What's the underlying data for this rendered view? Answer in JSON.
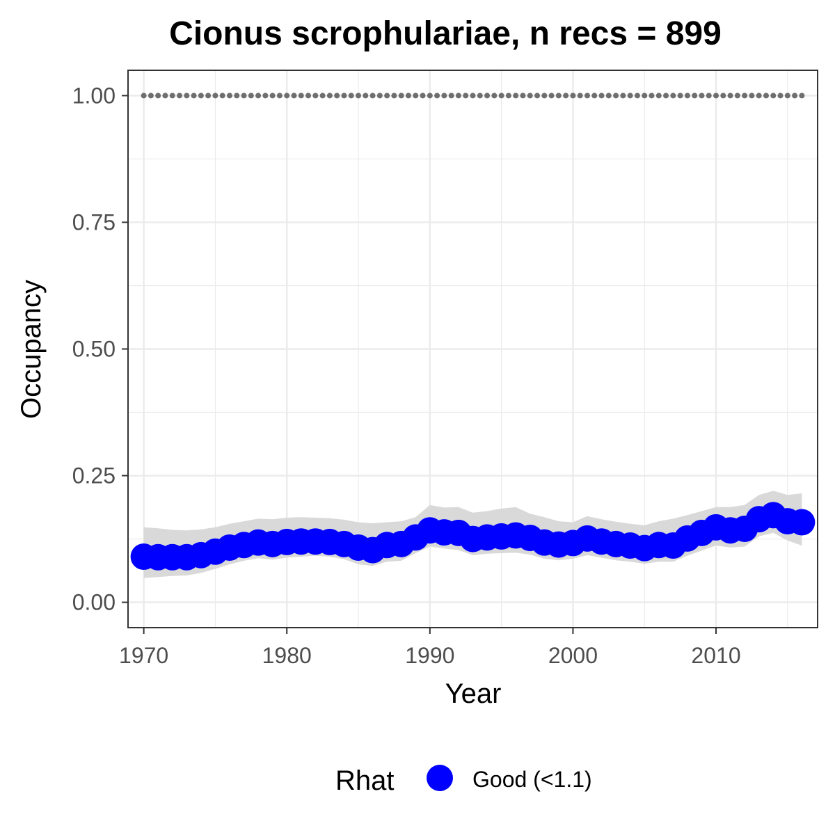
{
  "chart_data": {
    "type": "line",
    "title": "Cionus scrophulariae, n recs = 899",
    "xlabel": "Year",
    "ylabel": "Occupancy",
    "xlim": [
      1968.9,
      2017.1
    ],
    "ylim": [
      -0.05,
      1.05
    ],
    "x_ticks": [
      1970,
      1980,
      1990,
      2000,
      2010
    ],
    "y_ticks": [
      0.0,
      0.25,
      0.5,
      0.75,
      1.0
    ],
    "y_tick_labels": [
      "0.00",
      "0.25",
      "0.50",
      "0.75",
      "1.00"
    ],
    "grid": true,
    "legend": {
      "title": "Rhat",
      "position": "bottom",
      "entries": [
        {
          "label": "Good (<1.1)",
          "color": "#0000ff"
        }
      ]
    },
    "colors": {
      "points": "#0000ff",
      "ribbon": "#d9d9d9",
      "reference": "#6e6e6e",
      "grid": "#ebebeb",
      "panel_border": "#333333"
    },
    "reference_line": {
      "y": 1.0,
      "style": "dotted"
    },
    "x": [
      1970,
      1971,
      1972,
      1973,
      1974,
      1975,
      1976,
      1977,
      1978,
      1979,
      1980,
      1981,
      1982,
      1983,
      1984,
      1985,
      1986,
      1987,
      1988,
      1989,
      1990,
      1991,
      1992,
      1993,
      1994,
      1995,
      1996,
      1997,
      1998,
      1999,
      2000,
      2001,
      2002,
      2003,
      2004,
      2005,
      2006,
      2007,
      2008,
      2009,
      2010,
      2011,
      2012,
      2013,
      2014,
      2015,
      2016
    ],
    "series": [
      {
        "values": [
          0.09,
          0.089,
          0.089,
          0.089,
          0.093,
          0.1,
          0.108,
          0.113,
          0.118,
          0.115,
          0.119,
          0.12,
          0.12,
          0.119,
          0.115,
          0.108,
          0.103,
          0.113,
          0.115,
          0.128,
          0.142,
          0.138,
          0.137,
          0.125,
          0.128,
          0.13,
          0.132,
          0.127,
          0.118,
          0.114,
          0.117,
          0.126,
          0.12,
          0.115,
          0.112,
          0.107,
          0.113,
          0.112,
          0.126,
          0.137,
          0.148,
          0.142,
          0.145,
          0.164,
          0.172,
          0.16,
          0.158
        ],
        "lower": [
          0.048,
          0.05,
          0.052,
          0.053,
          0.058,
          0.066,
          0.075,
          0.082,
          0.087,
          0.084,
          0.088,
          0.09,
          0.092,
          0.09,
          0.085,
          0.075,
          0.072,
          0.08,
          0.082,
          0.097,
          0.11,
          0.106,
          0.103,
          0.093,
          0.096,
          0.097,
          0.098,
          0.094,
          0.086,
          0.083,
          0.086,
          0.093,
          0.088,
          0.083,
          0.08,
          0.076,
          0.08,
          0.08,
          0.092,
          0.102,
          0.112,
          0.108,
          0.11,
          0.13,
          0.137,
          0.122,
          0.112
        ],
        "upper": [
          0.148,
          0.146,
          0.143,
          0.142,
          0.144,
          0.148,
          0.155,
          0.16,
          0.165,
          0.164,
          0.167,
          0.168,
          0.167,
          0.166,
          0.163,
          0.158,
          0.156,
          0.158,
          0.16,
          0.168,
          0.192,
          0.187,
          0.188,
          0.177,
          0.18,
          0.185,
          0.188,
          0.175,
          0.168,
          0.16,
          0.158,
          0.17,
          0.164,
          0.159,
          0.155,
          0.152,
          0.16,
          0.165,
          0.172,
          0.18,
          0.188,
          0.188,
          0.192,
          0.212,
          0.22,
          0.212,
          0.215
        ]
      }
    ]
  }
}
